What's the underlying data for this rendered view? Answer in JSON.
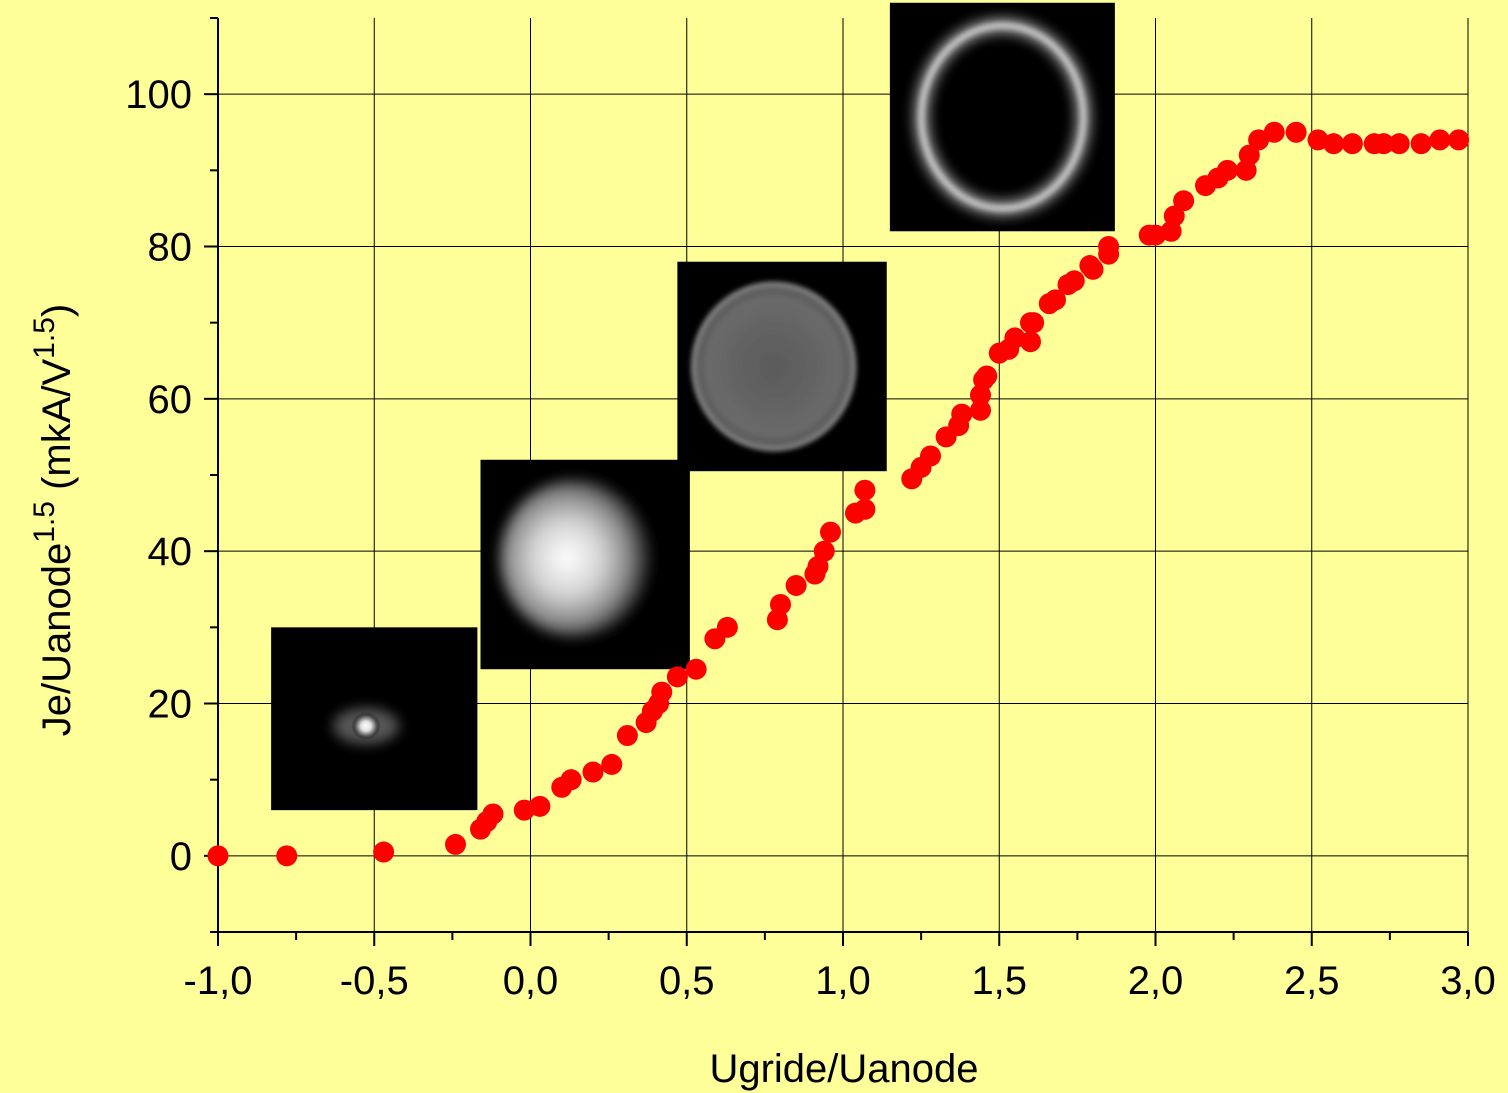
{
  "colors": {
    "background": "#ffff99",
    "marker": "#ff0000",
    "axis": "#000000",
    "grid": "#000000",
    "inset_background": "#000000"
  },
  "chart_data": {
    "type": "scatter",
    "title": "",
    "xlabel": "Ugride/Uanode",
    "ylabel": {
      "base": "Je/Uanode",
      "sup1": "1.5",
      "unit_pre": " (mkA/V",
      "sup2": "1.5",
      "unit_post": ")"
    },
    "xlim": [
      -1.0,
      3.0
    ],
    "ylim": [
      -10,
      110
    ],
    "grid": true,
    "x_ticks": [
      -1.0,
      -0.5,
      0.0,
      0.5,
      1.0,
      1.5,
      2.0,
      2.5,
      3.0
    ],
    "x_tick_labels": [
      "-1,0",
      "-0,5",
      "0,0",
      "0,5",
      "1,0",
      "1,5",
      "2,0",
      "2,5",
      "3,0"
    ],
    "x_minor_step": 0.25,
    "y_ticks": [
      0,
      20,
      40,
      60,
      80,
      100
    ],
    "y_tick_labels": [
      "0",
      "20",
      "40",
      "60",
      "80",
      "100"
    ],
    "y_minor_step": 10,
    "series": [
      {
        "marker": "circle",
        "color": "#ff0000",
        "x": [
          -1.0,
          -0.78,
          -0.47,
          -0.24,
          -0.16,
          -0.14,
          -0.12,
          -0.02,
          0.03,
          0.1,
          0.13,
          0.2,
          0.26,
          0.31,
          0.37,
          0.39,
          0.41,
          0.42,
          0.47,
          0.53,
          0.59,
          0.63,
          0.79,
          0.8,
          0.85,
          0.91,
          0.92,
          0.94,
          0.96,
          1.04,
          1.07,
          1.07,
          1.22,
          1.25,
          1.28,
          1.33,
          1.37,
          1.38,
          1.44,
          1.44,
          1.45,
          1.46,
          1.5,
          1.53,
          1.55,
          1.6,
          1.61,
          1.6,
          1.66,
          1.68,
          1.72,
          1.74,
          1.79,
          1.8,
          1.85,
          1.85,
          1.98,
          2.0,
          2.05,
          2.06,
          2.09,
          2.16,
          2.2,
          2.23,
          2.29,
          2.3,
          2.33,
          2.38,
          2.45,
          2.52,
          2.57,
          2.63,
          2.7,
          2.73,
          2.78,
          2.85,
          2.91,
          2.97
        ],
        "y": [
          0,
          0,
          0.5,
          1.5,
          3.5,
          4.5,
          5.5,
          6,
          6.5,
          9,
          10,
          11,
          12,
          15.8,
          17.5,
          19,
          20,
          21.5,
          23.5,
          24.5,
          28.5,
          30,
          31,
          33,
          35.5,
          37,
          38,
          40,
          42.5,
          45,
          45.5,
          48,
          49.5,
          51,
          52.5,
          55,
          56.5,
          58,
          58.5,
          60.5,
          62.5,
          63,
          66,
          66.5,
          68,
          67.5,
          70,
          70,
          72.5,
          73,
          75,
          75.5,
          77.5,
          77,
          79,
          80,
          81.5,
          81.5,
          82,
          84,
          86,
          88,
          89,
          90,
          90,
          92,
          94,
          95,
          95,
          94,
          93.5,
          93.5,
          93.5,
          93.5,
          93.5,
          93.5,
          94,
          94
        ]
      }
    ],
    "insets": [
      {
        "kind": "beam-image",
        "shape": "small-bright-spot",
        "x_range": [
          -0.83,
          -0.17
        ],
        "y_range": [
          6,
          30
        ]
      },
      {
        "kind": "beam-image",
        "shape": "filled-glowing-disc",
        "x_range": [
          -0.16,
          0.51
        ],
        "y_range": [
          24.5,
          52
        ]
      },
      {
        "kind": "beam-image",
        "shape": "faint-disc-with-ring",
        "x_range": [
          0.47,
          1.14
        ],
        "y_range": [
          50.5,
          78
        ]
      },
      {
        "kind": "beam-image",
        "shape": "hollow-ring",
        "x_range": [
          1.15,
          1.87
        ],
        "y_range": [
          82,
          112
        ]
      }
    ]
  }
}
